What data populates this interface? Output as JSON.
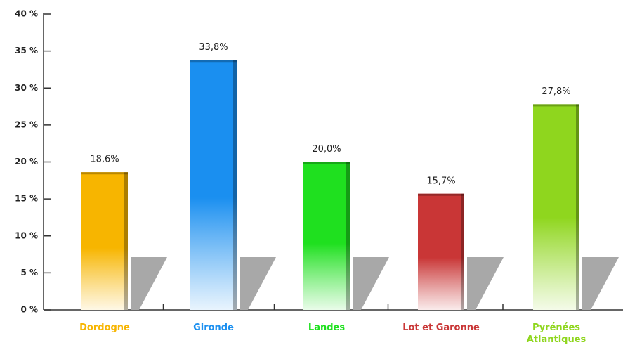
{
  "chart_data": {
    "type": "bar",
    "categories": [
      "Dordogne",
      "Gironde",
      "Landes",
      "Lot et Garonne",
      "Pyrénées Atlantiques"
    ],
    "values": [
      18.6,
      33.8,
      20.0,
      15.7,
      27.8
    ],
    "value_labels": [
      "18,6%",
      "33,8%",
      "20,0%",
      "15,7%",
      "27,8%"
    ],
    "colors": [
      "#f7b500",
      "#1a8ff0",
      "#1fe01f",
      "#c93636",
      "#8fd61e"
    ],
    "ylim": [
      0,
      40
    ],
    "yticks": [
      {
        "value": 0,
        "label": "0 %"
      },
      {
        "value": 5,
        "label": "5 %"
      },
      {
        "value": 10,
        "label": "10 %"
      },
      {
        "value": 15,
        "label": "15 %"
      },
      {
        "value": 20,
        "label": "20 %"
      },
      {
        "value": 25,
        "label": "25 %"
      },
      {
        "value": 30,
        "label": "30 %"
      },
      {
        "value": 35,
        "label": "35 %"
      },
      {
        "value": 40,
        "label": "40 %"
      }
    ]
  }
}
